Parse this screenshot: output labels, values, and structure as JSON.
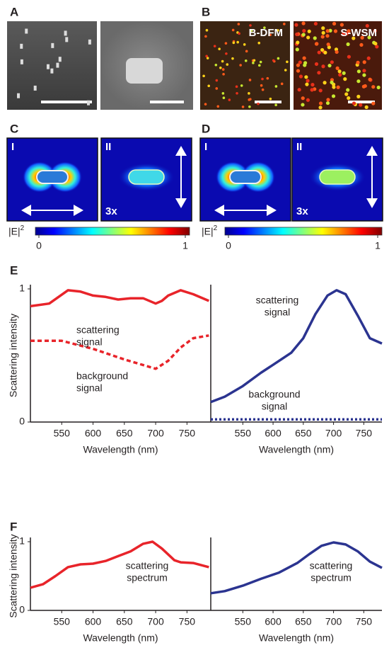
{
  "panel_labels": [
    "A",
    "B",
    "C",
    "D",
    "E",
    "F"
  ],
  "image_labels": {
    "B": [
      "B-DFM",
      "S-WSM"
    ],
    "C": [
      "I",
      "II",
      "3x"
    ],
    "D": [
      "I",
      "II",
      "3x"
    ]
  },
  "colorbar": {
    "label": "|E|",
    "power": "2",
    "ticks": [
      0,
      1
    ]
  },
  "chart_data": [
    {
      "type": "line",
      "ylabel": "Scattering intensity",
      "xlabel": "Wavelength (nm)",
      "xlim": [
        500,
        788
      ],
      "xticks": [
        550,
        600,
        650,
        700,
        750
      ],
      "ylim": [
        0,
        1
      ],
      "yticks": [
        0,
        1
      ],
      "annotations": [
        [
          "scattering",
          "signal"
        ],
        [
          "background",
          "signal"
        ]
      ],
      "series": [
        {
          "color": "#e8242a",
          "dash": "solid",
          "x": [
            500,
            530,
            560,
            580,
            600,
            620,
            640,
            660,
            680,
            700,
            710,
            720,
            740,
            760,
            785
          ],
          "values": [
            0.87,
            0.89,
            0.99,
            0.98,
            0.95,
            0.94,
            0.92,
            0.93,
            0.93,
            0.89,
            0.91,
            0.95,
            0.99,
            0.96,
            0.91
          ]
        },
        {
          "color": "#e8242a",
          "dash": "dashed",
          "x": [
            500,
            550,
            600,
            650,
            700,
            720,
            740,
            760,
            785
          ],
          "values": [
            0.61,
            0.61,
            0.55,
            0.47,
            0.4,
            0.46,
            0.56,
            0.63,
            0.65
          ]
        }
      ]
    },
    {
      "type": "line",
      "xlabel": "Wavelength (nm)",
      "xlim": [
        497,
        780
      ],
      "xticks": [
        550,
        600,
        650,
        700,
        750
      ],
      "ylim": [
        0,
        1
      ],
      "annotations": [
        [
          "scattering",
          "signal"
        ],
        [
          "background",
          "signal"
        ]
      ],
      "series": [
        {
          "color": "#2b3490",
          "dash": "solid",
          "x": [
            497,
            520,
            550,
            580,
            600,
            630,
            650,
            670,
            690,
            705,
            720,
            740,
            760,
            780
          ],
          "values": [
            0.15,
            0.19,
            0.27,
            0.37,
            0.43,
            0.52,
            0.63,
            0.81,
            0.95,
            0.99,
            0.96,
            0.8,
            0.63,
            0.59
          ]
        },
        {
          "color": "#2b3490",
          "dash": "dotted",
          "x": [
            497,
            600,
            700,
            780
          ],
          "values": [
            0.02,
            0.02,
            0.02,
            0.02
          ]
        }
      ]
    },
    {
      "type": "line",
      "ylabel": "Scattering intensity",
      "xlabel": "Wavelength (nm)",
      "xlim": [
        500,
        788
      ],
      "xticks": [
        550,
        600,
        650,
        700,
        750
      ],
      "ylim": [
        0,
        1
      ],
      "yticks": [
        0,
        1
      ],
      "annotations": [
        [
          "scattering",
          "spectrum"
        ]
      ],
      "series": [
        {
          "color": "#e8242a",
          "dash": "solid",
          "x": [
            500,
            520,
            540,
            560,
            580,
            600,
            620,
            640,
            660,
            680,
            695,
            710,
            730,
            740,
            760,
            785
          ],
          "values": [
            0.33,
            0.38,
            0.5,
            0.63,
            0.67,
            0.68,
            0.72,
            0.79,
            0.86,
            0.97,
            1.0,
            0.9,
            0.73,
            0.7,
            0.69,
            0.63
          ]
        }
      ]
    },
    {
      "type": "line",
      "xlabel": "Wavelength (nm)",
      "xlim": [
        497,
        780
      ],
      "xticks": [
        550,
        600,
        650,
        700,
        750
      ],
      "ylim": [
        0,
        1
      ],
      "annotations": [
        [
          "scattering",
          "spectrum"
        ]
      ],
      "series": [
        {
          "color": "#2b3490",
          "dash": "solid",
          "x": [
            497,
            520,
            550,
            580,
            610,
            640,
            660,
            680,
            700,
            720,
            740,
            760,
            780
          ],
          "values": [
            0.25,
            0.28,
            0.36,
            0.46,
            0.55,
            0.69,
            0.82,
            0.94,
            0.99,
            0.96,
            0.86,
            0.71,
            0.62
          ]
        }
      ]
    }
  ]
}
